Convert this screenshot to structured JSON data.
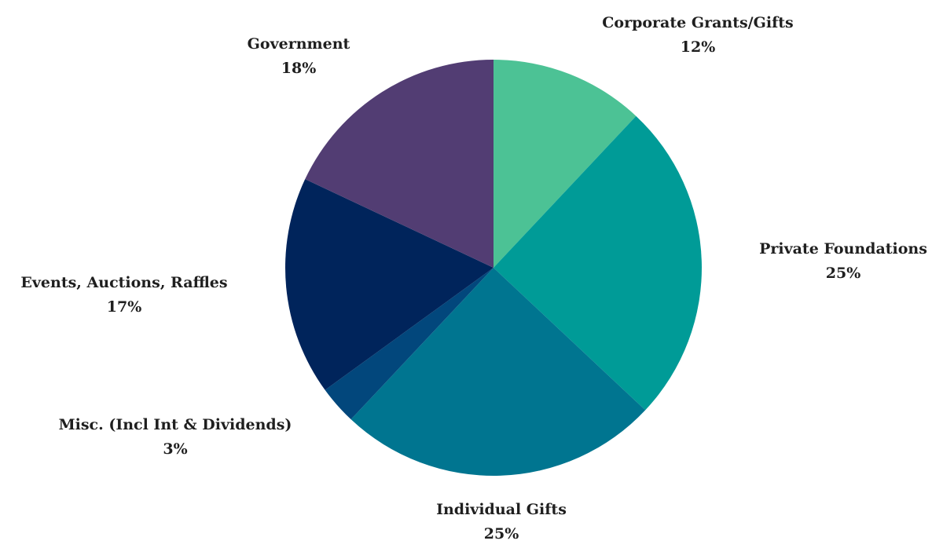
{
  "chart_data": {
    "type": "pie",
    "start_angle_deg": 0,
    "direction": "clockwise",
    "categories": [
      "Corporate Grants/Gifts",
      "Private Foundations",
      "Individual Gifts",
      "Misc. (Incl Int & Dividends)",
      "Events, Auctions, Raffles",
      "Government"
    ],
    "values": [
      12,
      25,
      25,
      3,
      17,
      18
    ],
    "data_labels": [
      "12%",
      "25%",
      "25%",
      "3%",
      "17%",
      "18%"
    ],
    "colors": [
      "#4cc295",
      "#009b97",
      "#007590",
      "#02477c",
      "#00245b",
      "#523d73"
    ],
    "legend": "none"
  }
}
